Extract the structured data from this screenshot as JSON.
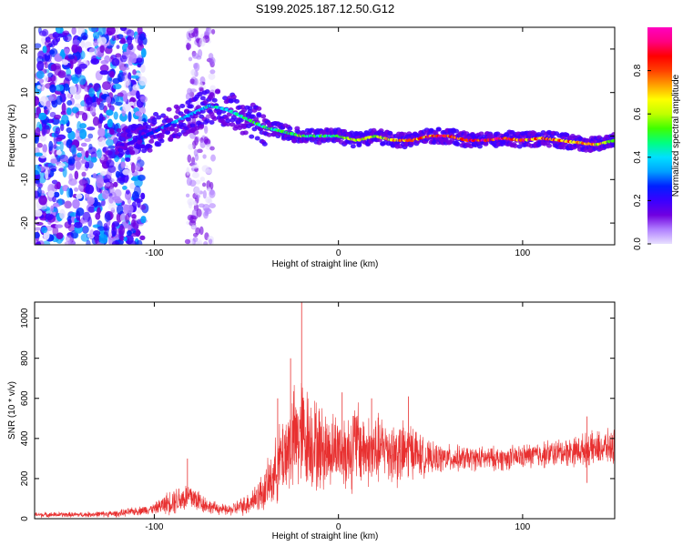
{
  "title": "S199.2025.187.12.50.G12",
  "chart_data": [
    {
      "type": "heatmap",
      "xlabel": "Height of straight line (km)",
      "ylabel": "Frequency (Hz)",
      "xlim": [
        -165,
        150
      ],
      "ylim": [
        -25,
        25
      ],
      "xticks": [
        -100,
        0,
        100
      ],
      "yticks": [
        -20,
        -10,
        0,
        10,
        20
      ],
      "colorbar": {
        "label": "Normalized spectral amplitude",
        "range": [
          0,
          1
        ],
        "ticks": [
          "0.0",
          "0.2",
          "0.4",
          "0.6",
          "0.8"
        ],
        "tick_values": [
          0,
          0.2,
          0.4,
          0.6,
          0.8
        ],
        "colors": [
          "#e8e0ff",
          "#b080ff",
          "#7000e0",
          "#3a00ff",
          "#0020ff",
          "#00a0ff",
          "#00e0ff",
          "#00ff80",
          "#40ff00",
          "#c0ff00",
          "#ffff00",
          "#ffa000",
          "#ff4000",
          "#ff0000",
          "#ff0080",
          "#ff00c0"
        ]
      },
      "ridge": {
        "x": [
          -115,
          -100,
          -90,
          -80,
          -70,
          -60,
          -50,
          -40,
          -30,
          -20,
          -10,
          0,
          10,
          20,
          30,
          40,
          50,
          60,
          70,
          80,
          90,
          100,
          110,
          120,
          130,
          140,
          150
        ],
        "y": [
          -2,
          1,
          3,
          5,
          7,
          6,
          4,
          2,
          1,
          0,
          0,
          0,
          -1,
          0,
          -1,
          -1,
          0,
          0,
          -1,
          -1,
          -0.5,
          -1,
          -0.5,
          -1,
          -1.5,
          -2,
          -1
        ],
        "peak_amplitude": [
          0.2,
          0.3,
          0.35,
          0.4,
          0.45,
          0.45,
          0.5,
          0.5,
          0.55,
          0.6,
          0.5,
          0.6,
          0.7,
          0.7,
          0.75,
          0.85,
          0.9,
          0.95,
          0.95,
          0.95,
          0.95,
          0.9,
          0.85,
          0.85,
          0.8,
          0.75,
          0.6
        ]
      }
    },
    {
      "type": "line",
      "xlabel": "Height of straight line (km)",
      "ylabel": "SNR (10 * v/v)",
      "xlim": [
        -165,
        150
      ],
      "ylim": [
        0,
        1080
      ],
      "xticks": [
        -100,
        0,
        100
      ],
      "yticks": [
        0,
        200,
        400,
        600,
        800,
        1000
      ],
      "color": "#e83030",
      "envelope": {
        "x": [
          -165,
          -140,
          -120,
          -100,
          -90,
          -80,
          -70,
          -60,
          -50,
          -40,
          -35,
          -30,
          -25,
          -20,
          -15,
          -10,
          -5,
          0,
          5,
          10,
          15,
          20,
          25,
          30,
          35,
          40,
          45,
          50,
          60,
          70,
          80,
          90,
          100,
          110,
          120,
          130,
          140,
          150
        ],
        "mean": [
          20,
          20,
          25,
          50,
          90,
          110,
          60,
          40,
          70,
          140,
          220,
          320,
          380,
          420,
          390,
          350,
          340,
          360,
          330,
          380,
          340,
          330,
          360,
          330,
          320,
          350,
          310,
          300,
          300,
          300,
          300,
          300,
          310,
          320,
          330,
          340,
          350,
          360
        ],
        "spread": [
          15,
          15,
          20,
          30,
          80,
          90,
          40,
          30,
          60,
          120,
          180,
          250,
          300,
          340,
          280,
          260,
          220,
          200,
          240,
          260,
          200,
          220,
          180,
          200,
          190,
          160,
          120,
          90,
          80,
          70,
          70,
          70,
          70,
          80,
          80,
          90,
          100,
          100
        ]
      },
      "peaks": [
        {
          "x": -82,
          "y": 300
        },
        {
          "x": -33,
          "y": 600
        },
        {
          "x": -26,
          "y": 800
        },
        {
          "x": -20,
          "y": 1080
        },
        {
          "x": 2,
          "y": 630
        },
        {
          "x": 18,
          "y": 600
        },
        {
          "x": 38,
          "y": 610
        },
        {
          "x": 135,
          "y": 510
        }
      ]
    }
  ]
}
